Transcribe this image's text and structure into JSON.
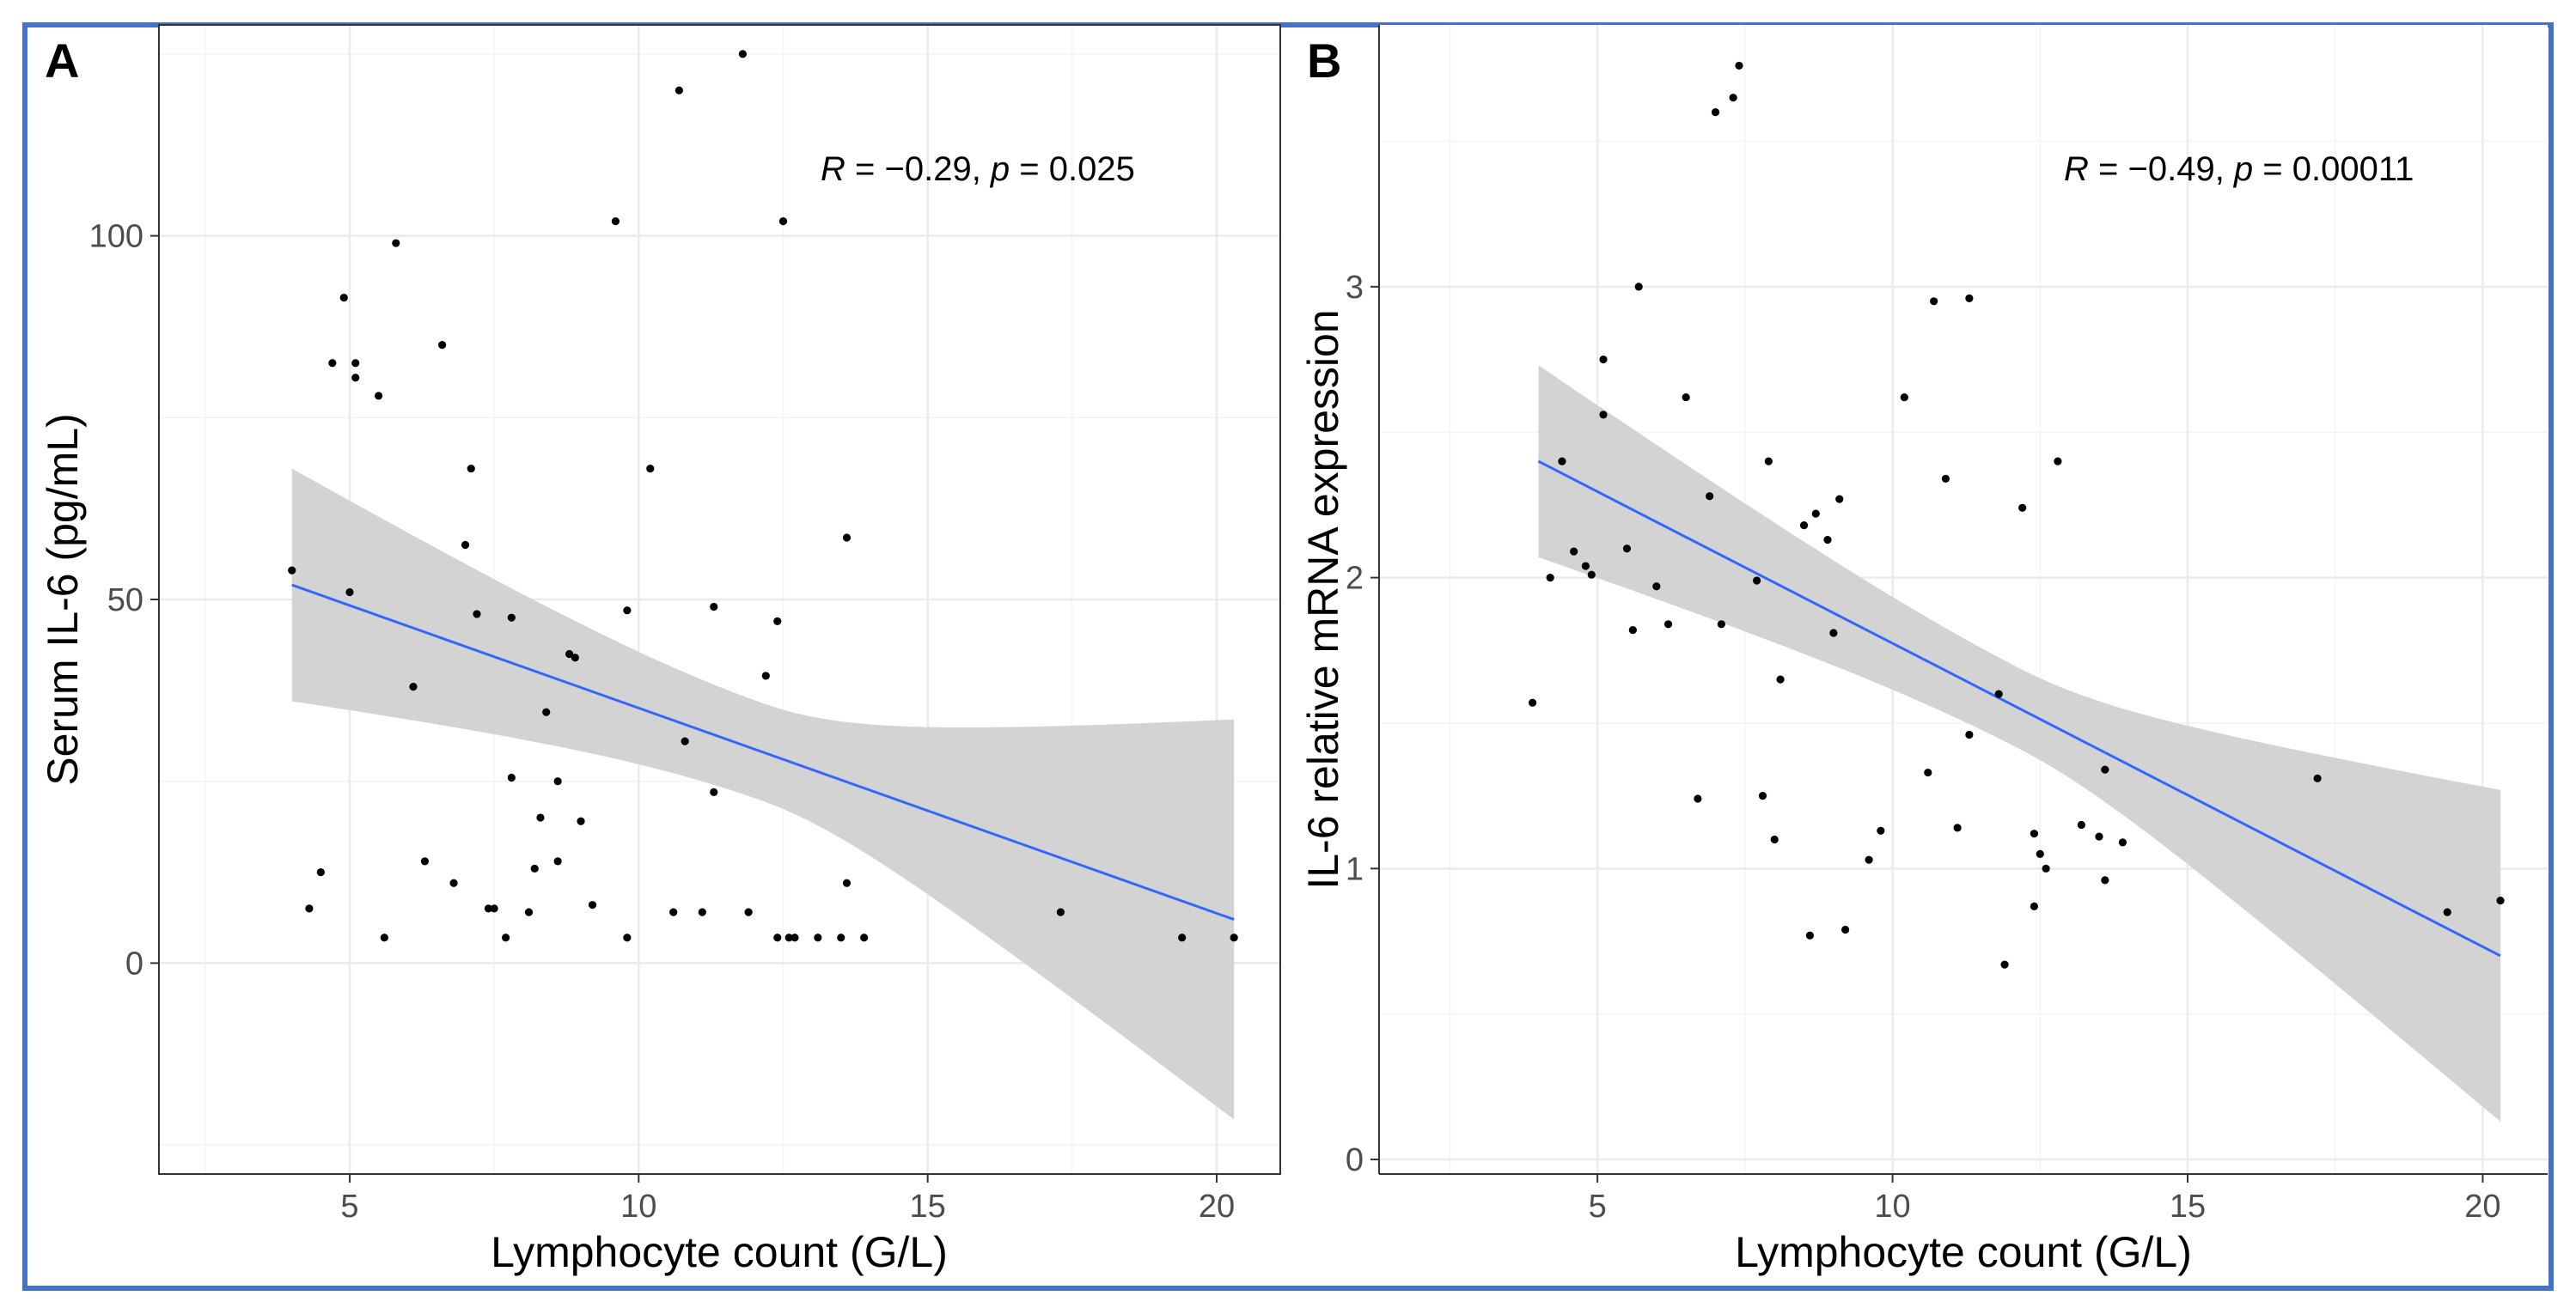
{
  "colors": {
    "border": "#4472c4",
    "panel_border": "#333333",
    "grid_major": "#ebebeb",
    "grid_minor": "#f4f4f4",
    "ribbon": "#d3d3d3",
    "fit_line": "#3366ff",
    "point": "#000000",
    "tick_text": "#4d4d4d"
  },
  "chart_data": [
    {
      "panel": "A",
      "type": "scatter",
      "title": "",
      "xlabel": "Lymphocyte count (G/L)",
      "ylabel": "Serum IL-6 (pg/mL)",
      "xlim": [
        1.7,
        21.1
      ],
      "ylim": [
        -29,
        129
      ],
      "xticks": [
        5,
        10,
        15,
        20
      ],
      "yticks": [
        0,
        50,
        100
      ],
      "x_minor": [
        2.5,
        7.5,
        12.5,
        17.5
      ],
      "y_minor": [
        -25,
        25,
        75,
        125
      ],
      "annotation": {
        "r_symbol": "R",
        "r_text": " = −0.29, ",
        "p_symbol": "p",
        "p_text": " = 0.025"
      },
      "fit": {
        "x_range": [
          4,
          20.3
        ],
        "y_start": 52,
        "y_end": 6,
        "ci_low": [
          36,
          -21
        ],
        "ci_high": [
          68,
          34
        ]
      },
      "points": [
        [
          4.0,
          54
        ],
        [
          4.3,
          7.5
        ],
        [
          4.5,
          12.5
        ],
        [
          4.7,
          82.5
        ],
        [
          4.9,
          91.5
        ],
        [
          5.0,
          51
        ],
        [
          5.1,
          80.5
        ],
        [
          5.1,
          82.5
        ],
        [
          5.5,
          78
        ],
        [
          5.6,
          3.5
        ],
        [
          5.8,
          99
        ],
        [
          6.1,
          38
        ],
        [
          6.3,
          14
        ],
        [
          6.6,
          85
        ],
        [
          6.8,
          11
        ],
        [
          7.0,
          57.5
        ],
        [
          7.1,
          68
        ],
        [
          7.2,
          48
        ],
        [
          7.4,
          7.5
        ],
        [
          7.5,
          7.5
        ],
        [
          7.7,
          3.5
        ],
        [
          7.8,
          47.5
        ],
        [
          7.8,
          25.5
        ],
        [
          8.1,
          7
        ],
        [
          8.2,
          13
        ],
        [
          8.3,
          20
        ],
        [
          8.4,
          34.5
        ],
        [
          8.6,
          14
        ],
        [
          8.6,
          25
        ],
        [
          8.8,
          42.5
        ],
        [
          8.9,
          42
        ],
        [
          9.0,
          19.5
        ],
        [
          9.2,
          8
        ],
        [
          9.6,
          102
        ],
        [
          9.8,
          3.5
        ],
        [
          9.8,
          48.5
        ],
        [
          10.2,
          68
        ],
        [
          10.6,
          7
        ],
        [
          10.7,
          120
        ],
        [
          10.8,
          30.5
        ],
        [
          11.1,
          7
        ],
        [
          11.3,
          23.5
        ],
        [
          11.3,
          49
        ],
        [
          11.8,
          125
        ],
        [
          11.9,
          7
        ],
        [
          12.2,
          39.5
        ],
        [
          12.4,
          47
        ],
        [
          12.4,
          3.5
        ],
        [
          12.5,
          102
        ],
        [
          12.6,
          3.5
        ],
        [
          12.7,
          3.5
        ],
        [
          13.1,
          3.5
        ],
        [
          13.5,
          3.5
        ],
        [
          13.6,
          11
        ],
        [
          13.6,
          58.5
        ],
        [
          13.9,
          3.5
        ],
        [
          17.3,
          7
        ],
        [
          19.4,
          3.5
        ],
        [
          20.3,
          3.5
        ]
      ]
    },
    {
      "panel": "B",
      "type": "scatter",
      "title": "",
      "xlabel": "Lymphocyte count (G/L)",
      "ylabel": "IL-6 relative mRNA expression",
      "xlim": [
        1.3,
        21.1
      ],
      "ylim": [
        -0.05,
        3.9
      ],
      "xticks": [
        5,
        10,
        15,
        20
      ],
      "yticks": [
        0,
        1,
        2,
        3
      ],
      "x_minor": [
        2.5,
        7.5,
        12.5,
        17.5
      ],
      "y_minor": [
        0.5,
        1.5,
        2.5,
        3.5
      ],
      "annotation": {
        "r_symbol": "R",
        "r_text": " = −0.49, ",
        "p_symbol": "p",
        "p_text": " = 0.00011"
      },
      "fit": {
        "x_range": [
          4,
          20.3
        ],
        "y_start": 2.4,
        "y_end": 0.7,
        "ci_low": [
          2.07,
          0.13
        ],
        "ci_high": [
          2.73,
          1.27
        ]
      },
      "points": [
        [
          3.9,
          1.57
        ],
        [
          4.2,
          2.0
        ],
        [
          4.4,
          2.4
        ],
        [
          4.6,
          2.09
        ],
        [
          4.8,
          2.04
        ],
        [
          4.9,
          2.01
        ],
        [
          5.1,
          2.75
        ],
        [
          5.1,
          2.56
        ],
        [
          5.5,
          2.1
        ],
        [
          5.6,
          1.82
        ],
        [
          5.7,
          3.0
        ],
        [
          6.0,
          1.97
        ],
        [
          6.2,
          1.84
        ],
        [
          6.5,
          2.62
        ],
        [
          6.7,
          1.24
        ],
        [
          6.9,
          2.28
        ],
        [
          7.0,
          3.6
        ],
        [
          7.1,
          1.84
        ],
        [
          7.3,
          3.65
        ],
        [
          7.4,
          3.76
        ],
        [
          7.7,
          1.99
        ],
        [
          7.8,
          1.25
        ],
        [
          7.9,
          2.4
        ],
        [
          8.0,
          1.1
        ],
        [
          8.1,
          1.65
        ],
        [
          8.5,
          2.18
        ],
        [
          8.6,
          0.77
        ],
        [
          8.7,
          2.22
        ],
        [
          8.9,
          2.13
        ],
        [
          9.0,
          1.81
        ],
        [
          9.1,
          2.27
        ],
        [
          9.2,
          0.79
        ],
        [
          9.6,
          1.03
        ],
        [
          9.8,
          1.13
        ],
        [
          10.2,
          2.62
        ],
        [
          10.6,
          1.33
        ],
        [
          10.7,
          2.95
        ],
        [
          10.9,
          2.34
        ],
        [
          11.1,
          1.14
        ],
        [
          11.3,
          1.46
        ],
        [
          11.3,
          2.96
        ],
        [
          11.8,
          1.6
        ],
        [
          11.9,
          0.67
        ],
        [
          12.2,
          2.24
        ],
        [
          12.4,
          1.12
        ],
        [
          12.4,
          0.87
        ],
        [
          12.5,
          1.05
        ],
        [
          12.6,
          1.0
        ],
        [
          12.8,
          2.4
        ],
        [
          13.2,
          1.15
        ],
        [
          13.5,
          1.11
        ],
        [
          13.6,
          1.34
        ],
        [
          13.6,
          0.96
        ],
        [
          13.9,
          1.09
        ],
        [
          17.2,
          1.31
        ],
        [
          19.4,
          0.85
        ],
        [
          20.3,
          0.89
        ]
      ]
    }
  ]
}
